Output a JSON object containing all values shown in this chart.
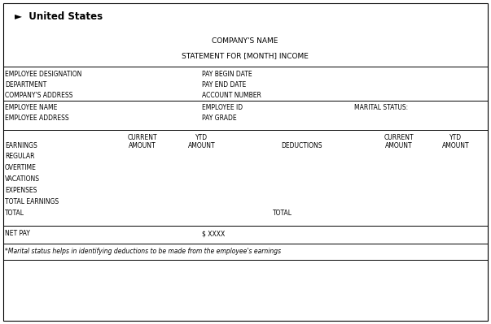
{
  "bg_color": "#ffffff",
  "border_color": "#000000",
  "header_title": "►  United States",
  "company_name": "COMPANY'S NAME",
  "statement": "STATEMENT FOR [MONTH] INCOME",
  "section1": [
    [
      "EMPLOYEE DESIGNATION",
      "PAY BEGIN DATE"
    ],
    [
      "DEPARTMENT",
      "PAY END DATE"
    ],
    [
      "COMPANY'S ADDRESS",
      "ACCOUNT NUMBER"
    ]
  ],
  "section2": [
    [
      "EMPLOYEE NAME",
      "EMPLOYEE ID",
      "MARITAL STATUS:"
    ],
    [
      "EMPLOYEE ADDRESS",
      "PAY GRADE",
      ""
    ]
  ],
  "earn_header_labels": [
    [
      "CURRENT",
      "AMOUNT"
    ],
    [
      "YTD",
      "AMOUNT"
    ]
  ],
  "deduct_header_labels": [
    "DEDUCTIONS",
    [
      "CURRENT",
      "AMOUNT"
    ],
    [
      "YTD",
      "AMOUNT"
    ]
  ],
  "earnings_items": [
    "EARNINGS",
    "REGULAR",
    "OVERTIME",
    "VACATIONS",
    "EXPENSES",
    "TOTAL EARNINGS",
    "TOTAL"
  ],
  "total_right_label": "TOTAL",
  "net_pay_label": "NET PAY",
  "net_pay_value": "$ XXXX",
  "footnote": "*Marital status helps in identifying deductions to be made from the employee's earnings",
  "font_size_header": 8.5,
  "font_size_body": 5.5,
  "font_size_title": 6.5,
  "font_size_footnote": 5.5
}
